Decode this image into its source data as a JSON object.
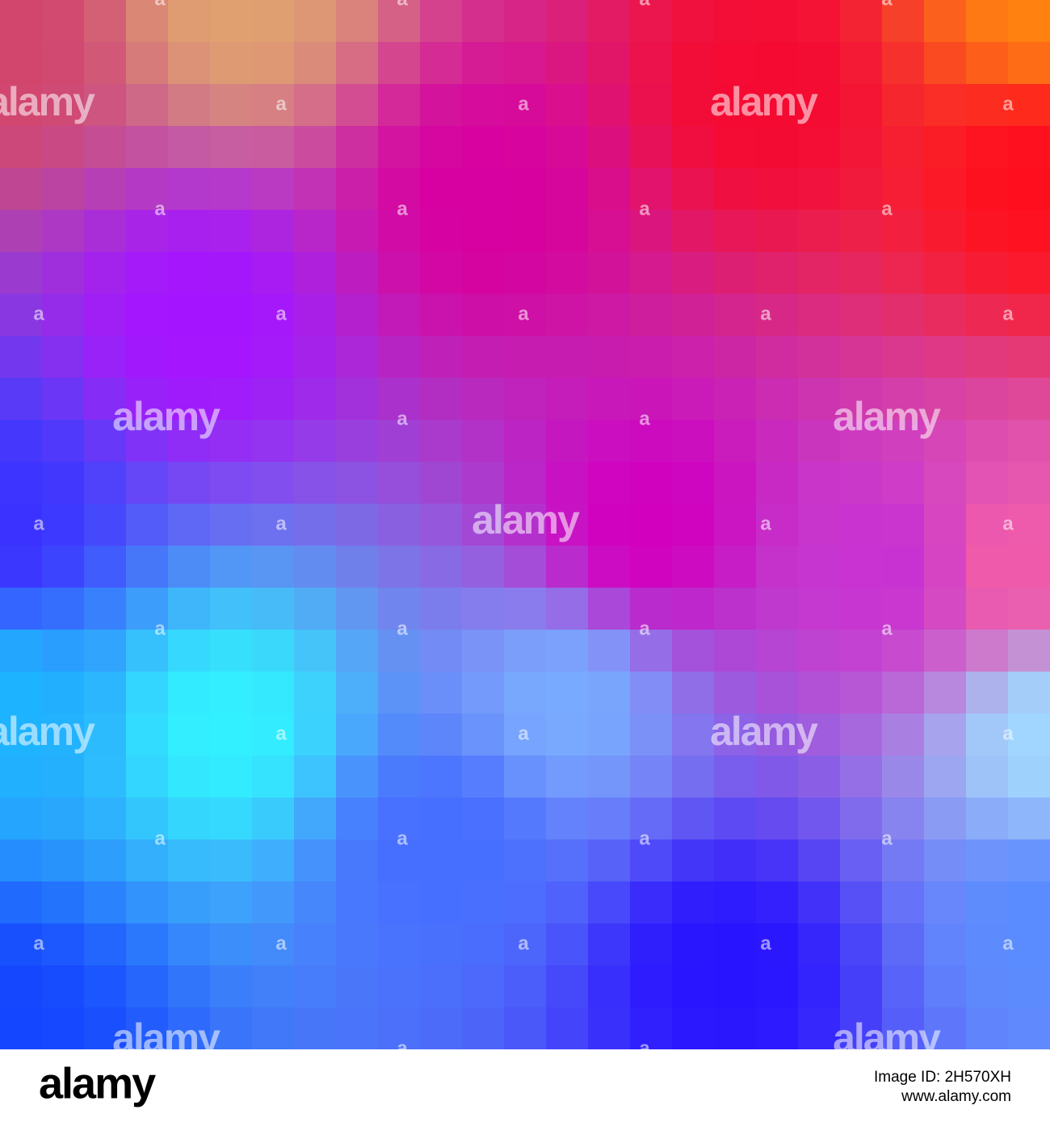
{
  "watermark": {
    "word": "alamy",
    "letter": "a"
  },
  "footer": {
    "logo": "alamy",
    "image_id": "Image ID: 2H570XH",
    "url": "www.alamy.com"
  }
}
